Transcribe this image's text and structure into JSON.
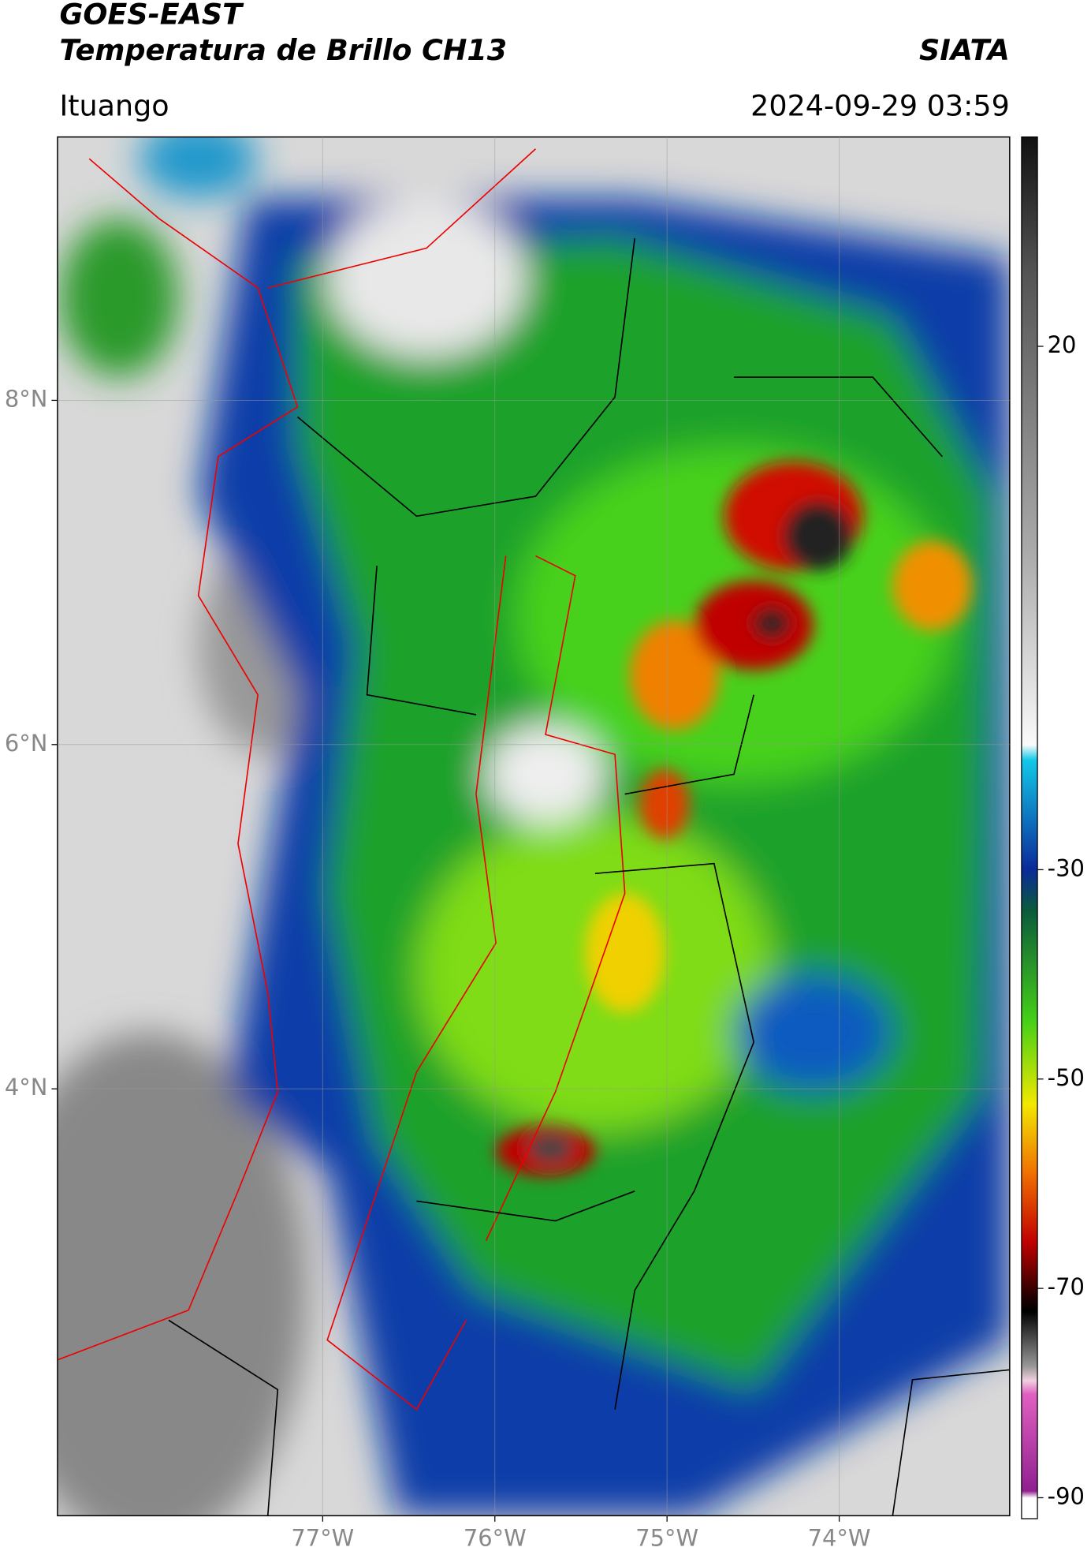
{
  "header": {
    "title": "GOES-EAST",
    "subtitle": "Temperatura de Brillo CH13",
    "source": "SIATA",
    "location": "Ituango",
    "timestamp": "2024-09-29 03:59"
  },
  "map": {
    "lonlim": [
      -78.54,
      -73.01
    ],
    "latlim": [
      1.52,
      9.53
    ],
    "lonticks": [
      {
        "value": -77,
        "label": "77°W"
      },
      {
        "value": -76,
        "label": "76°W"
      },
      {
        "value": -75,
        "label": "75°W"
      },
      {
        "value": -74,
        "label": "74°W"
      }
    ],
    "latticks": [
      {
        "value": 8,
        "label": "8°N"
      },
      {
        "value": 6,
        "label": "6°N"
      },
      {
        "value": 4,
        "label": "4°N"
      }
    ],
    "grid": true
  },
  "colorbar": {
    "lim": [
      -92,
      40
    ],
    "ticks": [
      20,
      -30,
      -50,
      -70,
      -90
    ]
  }
}
